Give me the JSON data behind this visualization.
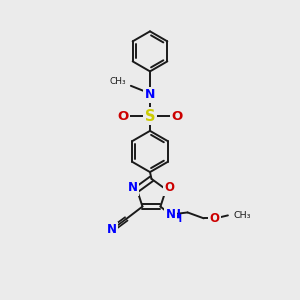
{
  "bg_color": "#ebebeb",
  "bond_color": "#1a1a1a",
  "N_color": "#0000ff",
  "O_color": "#cc0000",
  "S_color": "#cccc00",
  "line_width": 1.4,
  "figsize": [
    3.0,
    3.0
  ],
  "dpi": 100,
  "xlim": [
    0,
    10
  ],
  "ylim": [
    0,
    10
  ]
}
